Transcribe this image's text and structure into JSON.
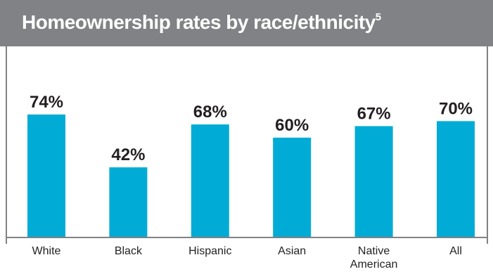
{
  "colors": {
    "header_background": "#808285",
    "bar": "#00acd6",
    "text": "#231f20",
    "frame": "#808285"
  },
  "header": {
    "title": "Homeownership rates by race/ethnicity",
    "footnote_marker": "5"
  },
  "chart_data": {
    "type": "bar",
    "title": "Homeownership rates by race/ethnicity",
    "xlabel": "",
    "ylabel": "",
    "unit": "%",
    "ylim": [
      0,
      100
    ],
    "grid": false,
    "legend": "none",
    "categories": [
      [
        "White"
      ],
      [
        "Black"
      ],
      [
        "Hispanic"
      ],
      [
        "Asian"
      ],
      [
        "Native",
        "American"
      ],
      [
        "All"
      ]
    ],
    "values": [
      74,
      42,
      68,
      60,
      67,
      70
    ],
    "value_labels": [
      "74%",
      "42%",
      "68%",
      "60%",
      "67%",
      "70%"
    ]
  }
}
